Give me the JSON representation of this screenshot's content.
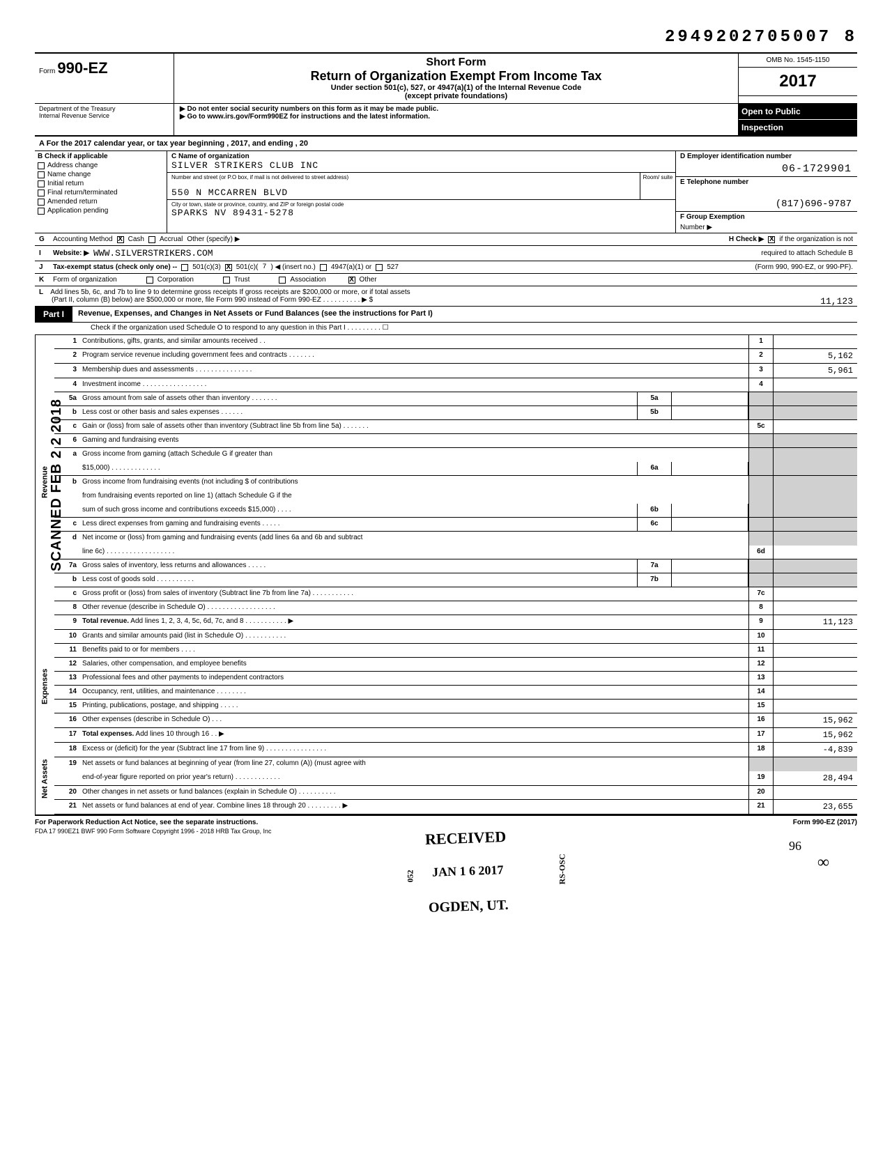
{
  "doc_id": "2949202705007 8",
  "form": {
    "prefix": "Form",
    "number": "990-EZ",
    "dept1": "Department of the Treasury",
    "dept2": "Internal Revenue Service"
  },
  "header": {
    "short_form": "Short Form",
    "title": "Return of Organization Exempt From Income Tax",
    "subtitle": "Under section 501(c), 527, or 4947(a)(1) of the Internal Revenue Code",
    "except": "(except private foundations)",
    "note1": "▶ Do not enter social security numbers on this form as it may be made public.",
    "note2": "▶ Go to www.irs.gov/Form990EZ for instructions and the latest information.",
    "omb": "OMB No. 1545-1150",
    "year": "2017",
    "open1": "Open to Public",
    "open2": "Inspection"
  },
  "line_a": "A  For the 2017 calendar year, or tax year beginning                              , 2017, and ending                                          , 20",
  "section_b": {
    "header": "B  Check if applicable",
    "items": [
      {
        "label": "Address change",
        "checked": false
      },
      {
        "label": "Name change",
        "checked": false
      },
      {
        "label": "Initial return",
        "checked": false
      },
      {
        "label": "Final return/terminated",
        "checked": false
      },
      {
        "label": "Amended return",
        "checked": false
      },
      {
        "label": "Application pending",
        "checked": false
      }
    ]
  },
  "section_c": {
    "label": "C  Name of organization",
    "name": "SILVER STRIKERS CLUB INC",
    "street_label": "Number and street (or P.O  box, if mail is not delivered to street address)",
    "room_label": "Room/\nsuite",
    "street": "550 N MCCARREN BLVD",
    "city_label": "City or town, state or province, country, and ZIP or foreign postal code",
    "city": "SPARKS NV 89431-5278"
  },
  "section_d": {
    "label": "D  Employer identification number",
    "ein": "06-1729901"
  },
  "section_e": {
    "label": "E  Telephone number",
    "phone": "(817)696-9787"
  },
  "section_f": {
    "label": "F  Group Exemption",
    "sub": "Number  ▶"
  },
  "row_g": {
    "letter": "G",
    "label": "Accounting Method",
    "cash": "Cash",
    "cash_checked": true,
    "accrual": "Accrual",
    "other": "Other (specify) ▶",
    "h_label": "H  Check ▶",
    "h_checked": true,
    "h_text": "if the organization is not"
  },
  "row_i": {
    "letter": "I",
    "label": "Website: ▶",
    "value": "WWW.SILVERSTRIKERS.COM",
    "h_cont": "required to attach Schedule B"
  },
  "row_j": {
    "letter": "J",
    "label": "Tax-exempt status (check only one) --",
    "c3": "501(c)(3)",
    "c_other": "501(c)(",
    "c_other_checked": true,
    "c_num": "7",
    "c_insert": ") ◀ (insert no.)",
    "c4947": "4947(a)(1) or",
    "c527": "527",
    "right": "(Form 990, 990-EZ, or 990-PF)."
  },
  "row_k": {
    "letter": "K",
    "label": "Form of organization",
    "corp": "Corporation",
    "trust": "Trust",
    "assoc": "Association",
    "other": "Other",
    "other_checked": true
  },
  "row_l": {
    "letter": "L",
    "line1": "Add lines 5b, 6c, and 7b to line 9 to determine gross receipts  If gross receipts are $200,000 or more, or if total assets",
    "line2": "(Part II, column (B) below) are $500,000 or more, file Form 990 instead of Form 990-EZ     . . . . . . . .      . .    ▶   $",
    "amount": "11,123"
  },
  "part1": {
    "label": "Part I",
    "title": "Revenue, Expenses, and Changes in Net Assets or Fund Balances (see the instructions for Part I)",
    "sub": "Check if the organization used Schedule O to respond to any question in this Part I  . .            . .          . . .             . .  ☐"
  },
  "sections": {
    "revenue": "Revenue",
    "expenses": "Expenses",
    "netassets": "Net Assets"
  },
  "lines": [
    {
      "sec": "rev",
      "n": "1",
      "desc": "Contributions, gifts, grants, and similar amounts received    . .",
      "end_n": "1",
      "end_v": ""
    },
    {
      "sec": "rev",
      "n": "2",
      "desc": "Program service revenue including government fees and contracts        . .        . . .         . .",
      "end_n": "2",
      "end_v": "5,162"
    },
    {
      "sec": "rev",
      "n": "3",
      "desc": "Membership dues and assessments      .         . .        .   . .        . . . .        . . .       . .",
      "end_n": "3",
      "end_v": "5,961"
    },
    {
      "sec": "rev",
      "n": "4",
      "desc": "Investment income  . . .             . . .           . .           .            . . .        . . .       . .",
      "end_n": "4",
      "end_v": ""
    },
    {
      "sec": "rev",
      "n": "5a",
      "desc": "Gross amount from sale of assets other than inventory       . . . .       . . .",
      "mid_n": "5a",
      "shaded_end": true
    },
    {
      "sec": "rev",
      "n": "b",
      "desc": "Less  cost or other basis and sales expenses        . . .           . . .",
      "mid_n": "5b",
      "shaded_end": true
    },
    {
      "sec": "rev",
      "n": "c",
      "desc": "Gain or (loss) from sale of assets other than inventory (Subtract line 5b from line 5a)        . . .          . . . .",
      "end_n": "5c",
      "end_v": ""
    },
    {
      "sec": "rev",
      "n": "6",
      "desc": "Gaming and fundraising events",
      "shaded_end": true,
      "no_end_n": true
    },
    {
      "sec": "rev",
      "n": "a",
      "desc": "Gross income from gaming (attach Schedule G if greater than",
      "shaded_end": true,
      "no_end_n": true,
      "no_border": true
    },
    {
      "sec": "rev",
      "n": "",
      "desc": "$15,000)             .  .  .    . .      . .                          .        . . .     . .",
      "mid_n": "6a",
      "shaded_end": true
    },
    {
      "sec": "rev",
      "n": "b",
      "desc": "Gross income from fundraising events (not including   $                                of contributions",
      "shaded_end": true,
      "no_end_n": true,
      "no_border": true
    },
    {
      "sec": "rev",
      "n": "",
      "desc": "from fundraising events reported on line 1) (attach Schedule G if the",
      "shaded_end": true,
      "no_end_n": true,
      "no_border": true
    },
    {
      "sec": "rev",
      "n": "",
      "desc": "sum of such gross income and contributions exceeds $15,000)      . . . .",
      "mid_n": "6b",
      "shaded_end": true
    },
    {
      "sec": "rev",
      "n": "c",
      "desc": "Less  direct expenses from gaming and fundraising events          .  . . . .",
      "mid_n": "6c",
      "shaded_end": true
    },
    {
      "sec": "rev",
      "n": "d",
      "desc": "Net income or (loss) from gaming and fundraising events (add lines 6a and 6b and subtract",
      "shaded_end": true,
      "no_end_n": true,
      "no_border": true
    },
    {
      "sec": "rev",
      "n": "",
      "desc": "line 6c)  .           . .         . .    . . .    . . .             .                .          . . . .            .",
      "end_n": "6d",
      "end_v": ""
    },
    {
      "sec": "rev",
      "n": "7a",
      "desc": "Gross sales of inventory, less returns and allowances   . . .         . .",
      "mid_n": "7a",
      "shaded_end": true
    },
    {
      "sec": "rev",
      "n": "b",
      "desc": "Less  cost of goods sold               . .              .           . . . . .         . .",
      "mid_n": "7b",
      "shaded_end": true
    },
    {
      "sec": "rev",
      "n": "c",
      "desc": "Gross profit or (loss) from sales of inventory (Subtract line 7b from line 7a)  .              . . . .       . . .       . . .",
      "end_n": "7c",
      "end_v": ""
    },
    {
      "sec": "rev",
      "n": "8",
      "desc": "Other revenue (describe in Schedule O) . .           . .              . . .           .  .  .    . .    . .  . .   . .",
      "end_n": "8",
      "end_v": ""
    },
    {
      "sec": "rev",
      "n": "9",
      "desc": "Total revenue. Add lines 1, 2, 3, 4, 5c, 6d, 7c, and 8              . . . . .           . . . .              . .   ▶",
      "end_n": "9",
      "end_v": "11,123",
      "bold": true
    },
    {
      "sec": "exp",
      "n": "10",
      "desc": "Grants and similar amounts paid (list in Schedule O)             . . . . . . .      . .  . .",
      "end_n": "10",
      "end_v": ""
    },
    {
      "sec": "exp",
      "n": "11",
      "desc": "Benefits paid to or for members    . .              . .",
      "end_n": "11",
      "end_v": ""
    },
    {
      "sec": "exp",
      "n": "12",
      "desc": "Salaries, other compensation, and employee benefits",
      "end_n": "12",
      "end_v": ""
    },
    {
      "sec": "exp",
      "n": "13",
      "desc": "Professional fees and other payments to independent contractors",
      "end_n": "13",
      "end_v": ""
    },
    {
      "sec": "exp",
      "n": "14",
      "desc": "Occupancy, rent, utilities, and maintenance  . .            . . . . . .",
      "end_n": "14",
      "end_v": ""
    },
    {
      "sec": "exp",
      "n": "15",
      "desc": "Printing, publications, postage, and shipping  .           .     . . .",
      "end_n": "15",
      "end_v": ""
    },
    {
      "sec": "exp",
      "n": "16",
      "desc": "Other expenses (describe in Schedule O)        . . .",
      "end_n": "16",
      "end_v": "15,962"
    },
    {
      "sec": "exp",
      "n": "17",
      "desc": "Total expenses. Add lines 10 through 16     . .                                                                    ▶",
      "end_n": "17",
      "end_v": "15,962",
      "bold": true
    },
    {
      "sec": "net",
      "n": "18",
      "desc": "Excess or (deficit) for the year (Subtract line 17 from line 9) . . . . . . .        .          .  . . .      . . . .",
      "end_n": "18",
      "end_v": "-4,839"
    },
    {
      "sec": "net",
      "n": "19",
      "desc": "Net assets or fund balances at beginning of year (from line 27, column (A)) (must agree with",
      "no_end_n": true,
      "shaded_end": true,
      "no_border": true
    },
    {
      "sec": "net",
      "n": "",
      "desc": "end-of-year figure reported on prior year's return)  .            .             .          .   . . . . . .   . .",
      "end_n": "19",
      "end_v": "28,494"
    },
    {
      "sec": "net",
      "n": "20",
      "desc": "Other changes in net assets or fund balances (explain in Schedule O)        .   . . .      . . . .         . .",
      "end_n": "20",
      "end_v": ""
    },
    {
      "sec": "net",
      "n": "21",
      "desc": "Net assets or fund balances at end of year. Combine lines 18 through 20 . .    . .   . . .     . .         ▶",
      "end_n": "21",
      "end_v": "23,655"
    }
  ],
  "footer": {
    "left": "For Paperwork Reduction Act Notice, see the separate instructions.",
    "right": "Form 990-EZ (2017)",
    "sub": "FDA      17   990EZ1      BWF 990      Form Software Copyright 1996 - 2018 HRB Tax Group, Inc"
  },
  "stamps": {
    "scanned": "SCANNED FEB 2 2 2018",
    "received": "RECEIVED",
    "date": "JAN 1 6 2017",
    "ogden": "OGDEN, UT.",
    "rs": "052",
    "rs2": "RS-OSC",
    "handwrite": "96"
  },
  "colors": {
    "text": "#000000",
    "bg": "#ffffff",
    "shade": "#d0d0d0"
  }
}
